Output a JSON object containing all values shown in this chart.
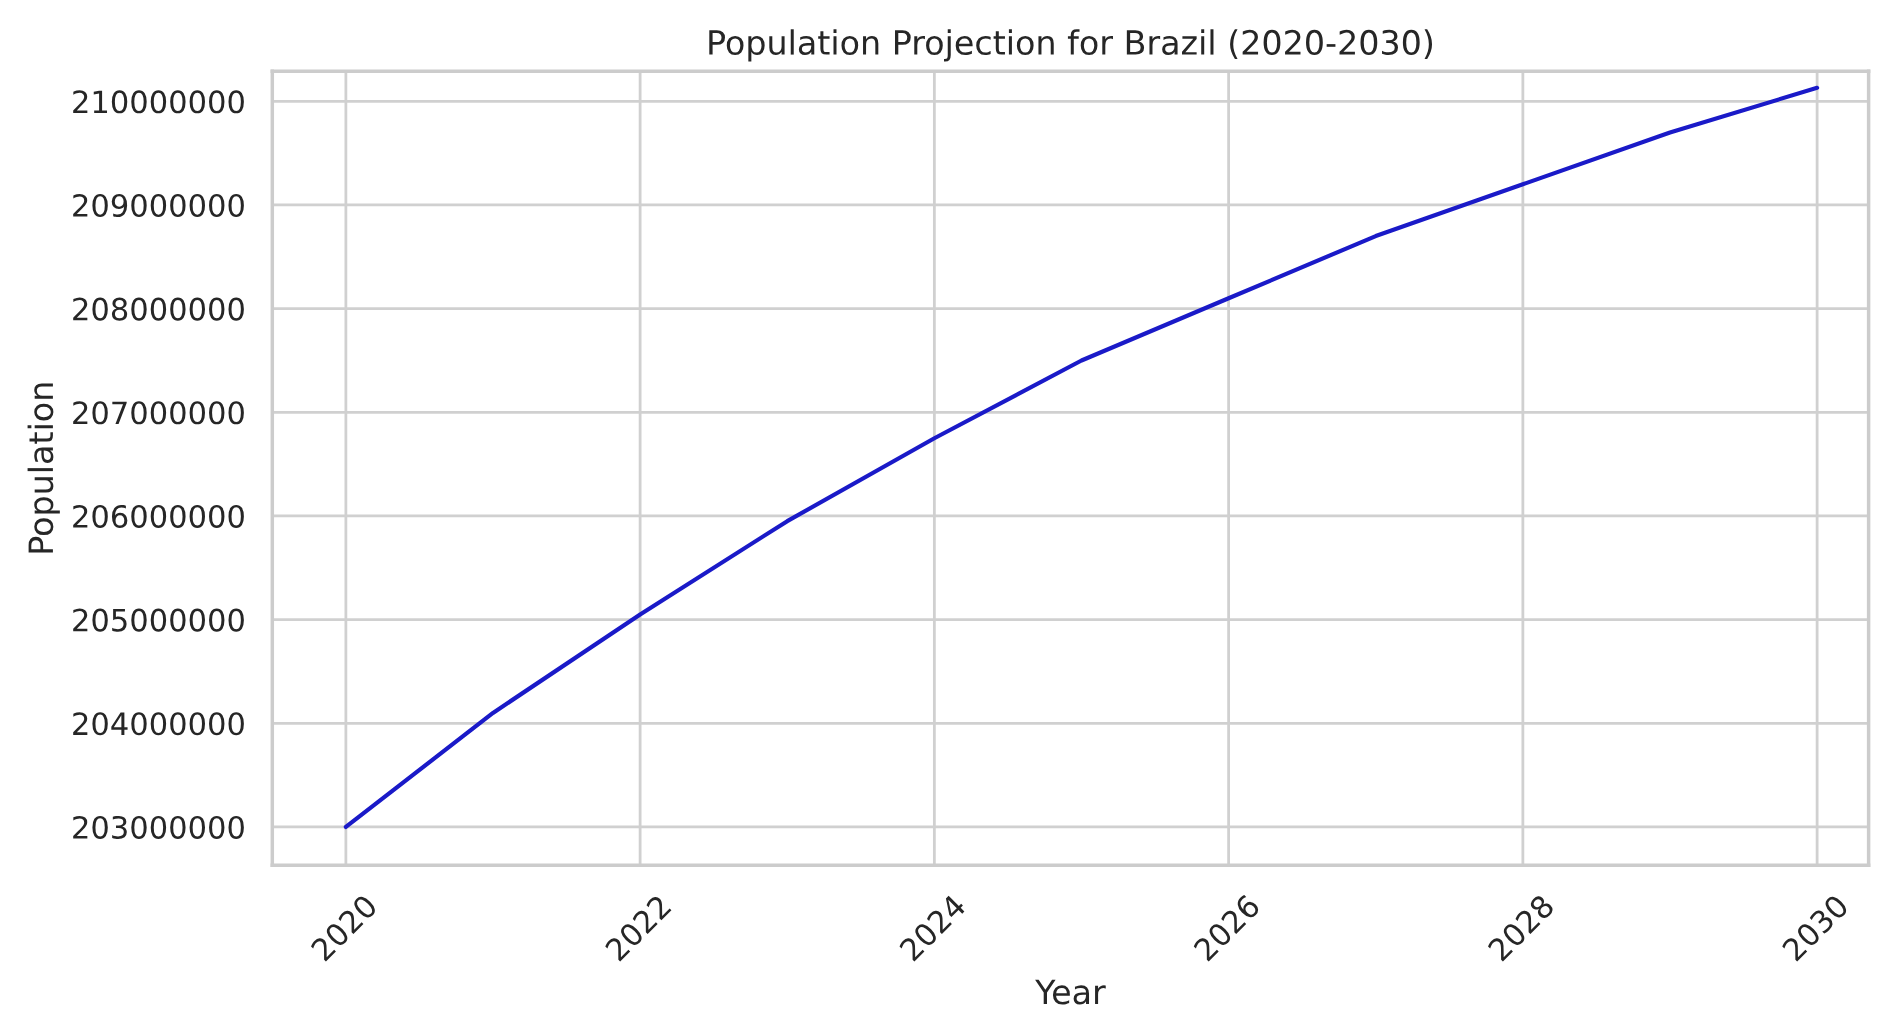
{
  "chart_data": {
    "type": "line",
    "title": "Population Projection for Brazil (2020-2030)",
    "xlabel": "Year",
    "ylabel": "Population",
    "x": [
      2020,
      2021,
      2022,
      2023,
      2024,
      2025,
      2026,
      2027,
      2028,
      2029,
      2030
    ],
    "series": [
      {
        "color": "#1a1ac8",
        "values": [
          203000000,
          204100000,
          205050000,
          205950000,
          206750000,
          207500000,
          208100000,
          208700000,
          209200000,
          209700000,
          210130000
        ]
      }
    ],
    "xlim": [
      2019.5,
      2030.35
    ],
    "xticks": [
      2020,
      2022,
      2024,
      2026,
      2028,
      2030
    ],
    "ylim": [
      202630000,
      210290000
    ],
    "yticks": [
      203000000,
      204000000,
      205000000,
      206000000,
      207000000,
      208000000,
      209000000,
      210000000
    ],
    "grid": true,
    "legend": false,
    "marker": "none",
    "line_style": "solid"
  }
}
